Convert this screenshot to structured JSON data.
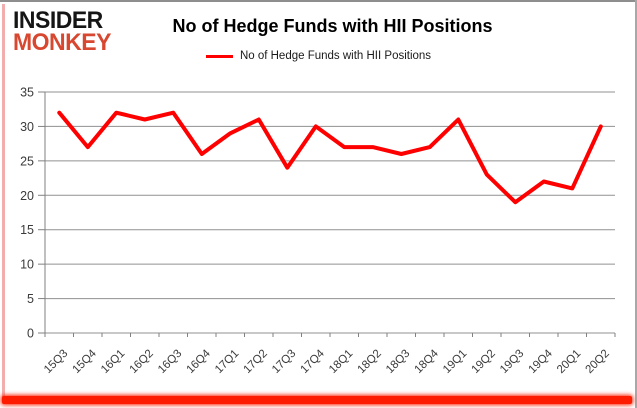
{
  "logo": {
    "line1": "INSIDER",
    "line2": "MONKEY",
    "line1_color": "#151515",
    "line2_color": "#d8472f"
  },
  "title": "No of Hedge Funds with HII Positions",
  "legend": {
    "label": "No of Hedge Funds with HII Positions",
    "line_color": "#fe0000"
  },
  "chart_data": {
    "type": "line",
    "title": "No of Hedge Funds with HII Positions",
    "categories": [
      "15Q3",
      "15Q4",
      "16Q1",
      "16Q2",
      "16Q3",
      "16Q4",
      "17Q1",
      "17Q2",
      "17Q3",
      "17Q4",
      "18Q1",
      "18Q2",
      "18Q3",
      "18Q4",
      "19Q1",
      "19Q2",
      "19Q3",
      "19Q4",
      "20Q1",
      "20Q2"
    ],
    "series": [
      {
        "name": "No of Hedge Funds with HII Positions",
        "color": "#fe0000",
        "values": [
          32,
          27,
          32,
          31,
          32,
          26,
          29,
          31,
          24,
          30,
          27,
          27,
          26,
          27,
          31,
          23,
          19,
          22,
          21,
          30
        ]
      }
    ],
    "xlabel": "",
    "ylabel": "",
    "ylim": [
      0,
      35
    ],
    "ytick_step": 5,
    "grid": true,
    "legend_position": "top"
  },
  "colors": {
    "background": "#ffffff",
    "grid": "#919191",
    "axis": "#808080",
    "tick_label": "#3b3b3b",
    "border_top": "#8e8e8e",
    "border_right": "#a8a8a8",
    "border_left": "#f2aeae",
    "border_bottom": "#fe1c00"
  }
}
